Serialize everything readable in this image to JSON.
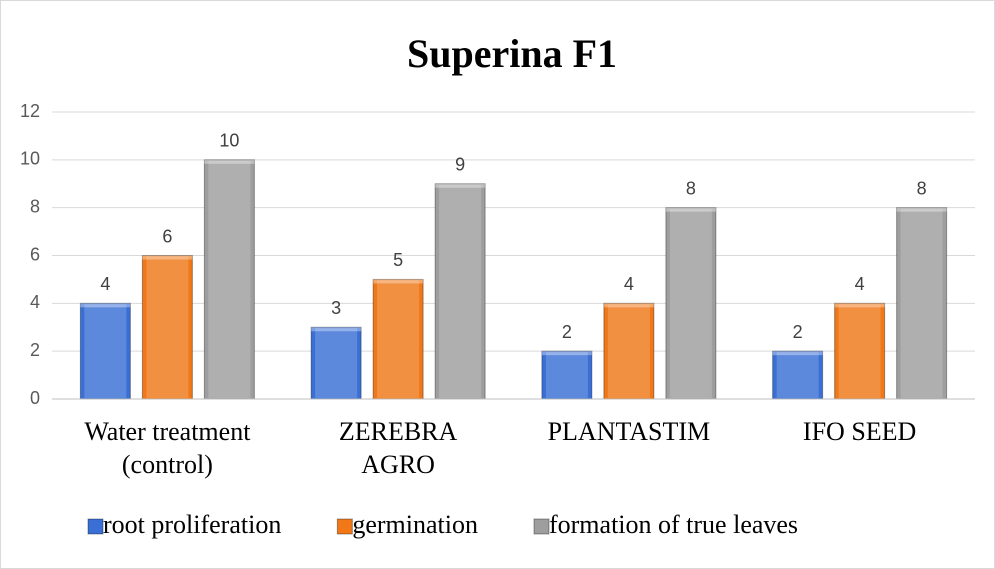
{
  "chart_data": {
    "type": "bar",
    "title": "Superina F1",
    "categories": [
      "Water treatment\n(control)",
      "ZEREBRA\nAGRO",
      "PLANTASTIM",
      "IFO SEED"
    ],
    "series": [
      {
        "name": "root proliferation",
        "color": "#3a6fd6",
        "values": [
          4,
          3,
          2,
          2
        ]
      },
      {
        "name": "germination",
        "color": "#f07818",
        "values": [
          6,
          5,
          4,
          4
        ]
      },
      {
        "name": "formation of true leaves",
        "color": "#9e9e9e",
        "values": [
          10,
          9,
          8,
          8
        ]
      }
    ],
    "ylim": [
      0,
      12
    ],
    "yticks": [
      0,
      2,
      4,
      6,
      8,
      10,
      12
    ],
    "grid": true,
    "legend": "bottom"
  }
}
